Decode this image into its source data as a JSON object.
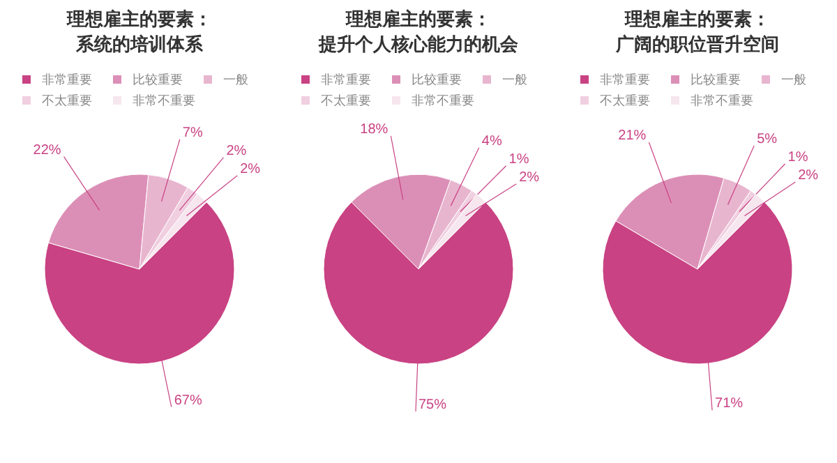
{
  "chart_data": [
    {
      "type": "pie",
      "title": "理想雇主的要素：",
      "subtitle": "系统的培训体系",
      "categories": [
        "非常重要",
        "比较重要",
        "一般",
        "不太重要",
        "非常不重要"
      ],
      "values": [
        67,
        22,
        7,
        2,
        2
      ],
      "value_labels": [
        "67%",
        "22%",
        "7%",
        "2%",
        "2%"
      ],
      "colors": [
        "#c94283",
        "#dc8fb6",
        "#e8b5cf",
        "#f0cfe0",
        "#f6e6ee"
      ],
      "legend": "top"
    },
    {
      "type": "pie",
      "title": "理想雇主的要素：",
      "subtitle": "提升个人核心能力的机会",
      "categories": [
        "非常重要",
        "比较重要",
        "一般",
        "不太重要",
        "非常不重要"
      ],
      "values": [
        75,
        18,
        4,
        1,
        2
      ],
      "value_labels": [
        "75%",
        "18%",
        "4%",
        "1%",
        "2%"
      ],
      "colors": [
        "#c94283",
        "#dc8fb6",
        "#e8b5cf",
        "#f0cfe0",
        "#f6e6ee"
      ],
      "legend": "top"
    },
    {
      "type": "pie",
      "title": "理想雇主的要素：",
      "subtitle": "广阔的职位晋升空间",
      "categories": [
        "非常重要",
        "比较重要",
        "一般",
        "不太重要",
        "非常不重要"
      ],
      "values": [
        71,
        21,
        5,
        1,
        2
      ],
      "value_labels": [
        "71%",
        "21%",
        "5%",
        "1%",
        "2%"
      ],
      "colors": [
        "#c94283",
        "#dc8fb6",
        "#e8b5cf",
        "#f0cfe0",
        "#f6e6ee"
      ],
      "legend": "top"
    }
  ]
}
